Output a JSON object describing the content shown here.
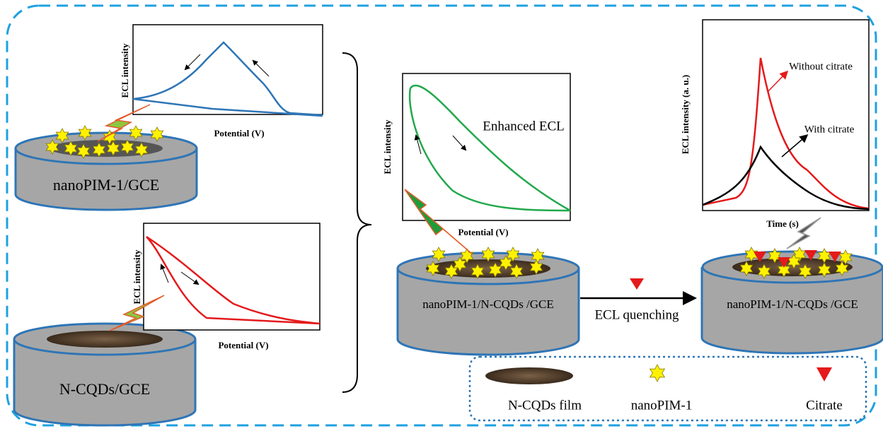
{
  "plots": [
    {
      "y_label": "ECL intensity",
      "x_label": "Potential (V)"
    },
    {
      "y_label": "ECL intensity",
      "x_label": "Potential (V)"
    },
    {
      "y_label": "ECL intensity",
      "x_label": "Potential (V)",
      "annotation": "Enhanced ECL"
    },
    {
      "y_label": "ECL intensity (a. u.)",
      "x_label": "Time (s)",
      "curves": [
        "Without citrate",
        "With citrate"
      ]
    }
  ],
  "electrodes": [
    {
      "label": "nanoPIM-1/GCE"
    },
    {
      "label": "N-CQDs/GCE"
    },
    {
      "label": "nanoPIM-1/N-CQDs  /GCE"
    },
    {
      "label": "nanoPIM-1/N-CQDs  /GCE"
    }
  ],
  "arrow": {
    "label": "ECL quenching"
  },
  "legend": [
    "N-CQDs film",
    "nanoPIM-1",
    "Citrate"
  ]
}
